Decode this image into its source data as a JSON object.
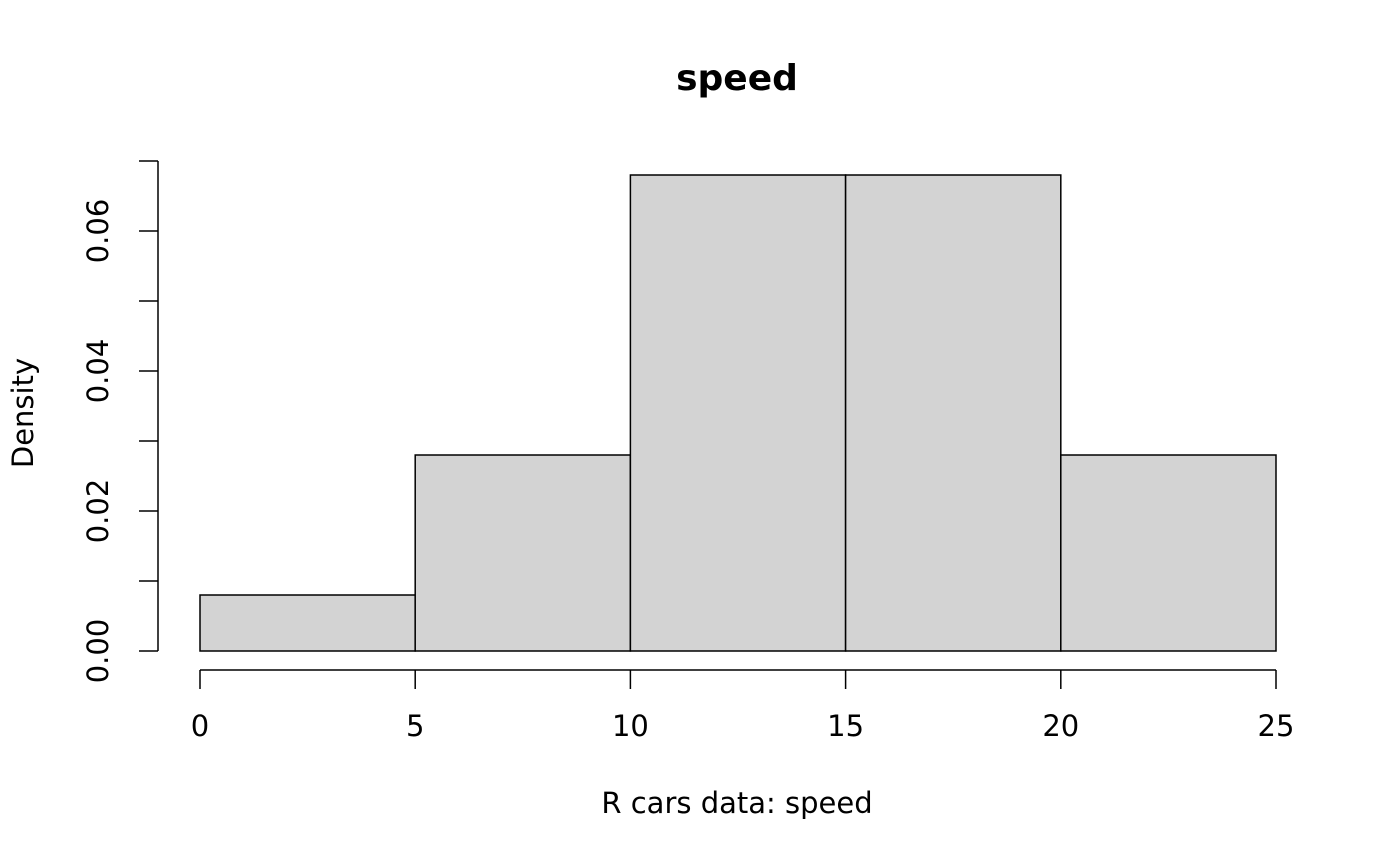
{
  "chart_data": {
    "type": "histogram",
    "title": "speed",
    "xlabel": "R cars data: speed",
    "ylabel": "Density",
    "bins": [
      0,
      5,
      10,
      15,
      20,
      25
    ],
    "values": [
      0.008,
      0.028,
      0.068,
      0.068,
      0.028
    ],
    "color": "#d3d3d3",
    "xlim": [
      0,
      25
    ],
    "xticks": [
      0,
      5,
      10,
      15,
      20,
      25
    ],
    "ylim": [
      0,
      0.07
    ],
    "yticks": [
      {
        "value": 0,
        "label": "0.00"
      },
      {
        "value": 0.01,
        "label": null
      },
      {
        "value": 0.02,
        "label": "0.02"
      },
      {
        "value": 0.03,
        "label": null
      },
      {
        "value": 0.04,
        "label": "0.04"
      },
      {
        "value": 0.05,
        "label": null
      },
      {
        "value": 0.06,
        "label": "0.06"
      },
      {
        "value": 0.07,
        "label": null
      }
    ],
    "grid": false
  }
}
